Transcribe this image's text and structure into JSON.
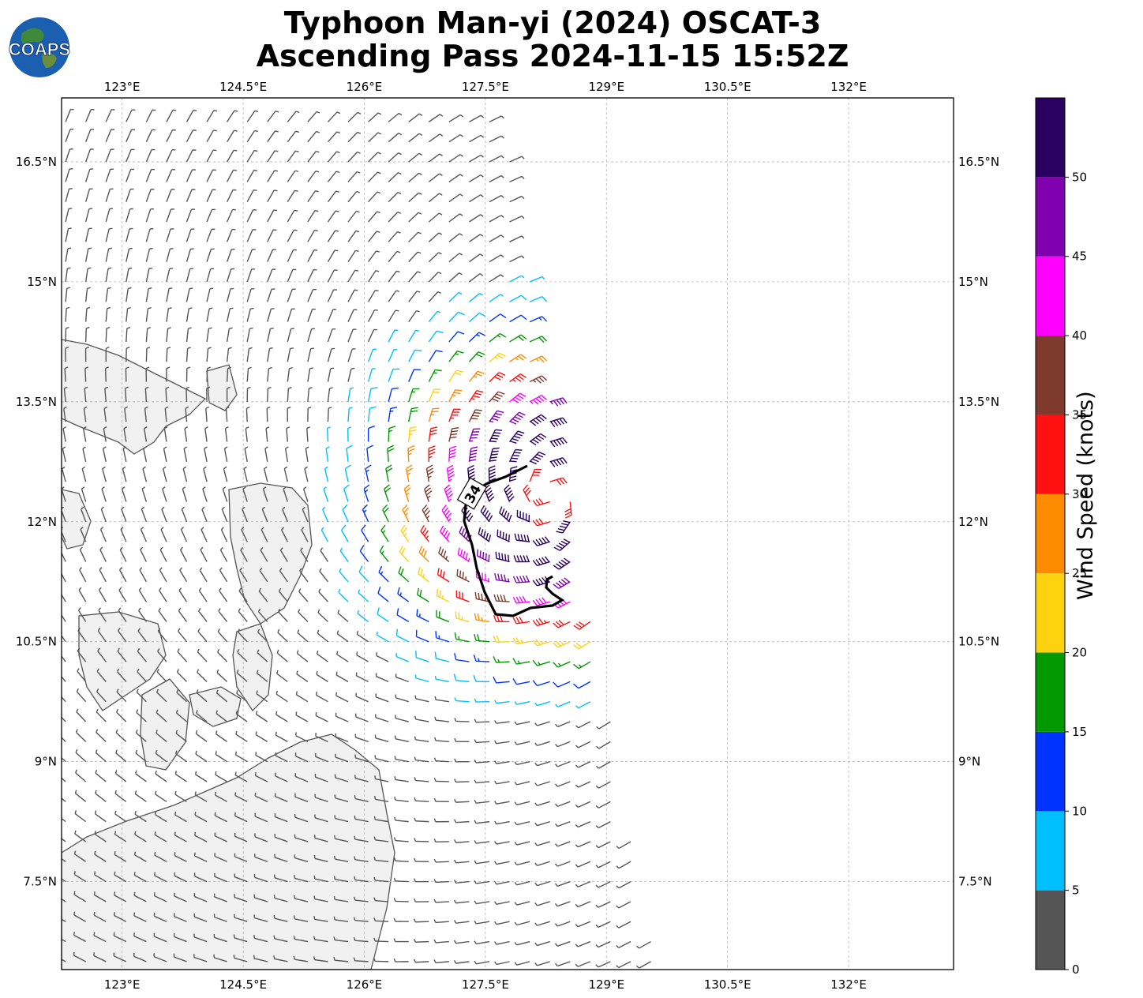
{
  "title": {
    "line1": "Typhoon Man-yi (2024) OSCAT-3",
    "line2": "Ascending Pass 2024-11-15 15:52Z"
  },
  "logo": {
    "text": "COAPS",
    "icon": "globe-logo-icon"
  },
  "map": {
    "lon_ticks": [
      "123°E",
      "124.5°E",
      "126°E",
      "127.5°E",
      "129°E",
      "130.5°E",
      "132°E"
    ],
    "lat_ticks": [
      "16.5°N",
      "15°N",
      "13.5°N",
      "12°N",
      "10.5°N",
      "9°N",
      "7.5°N"
    ],
    "lon_values": [
      123,
      124.5,
      126,
      127.5,
      129,
      130.5,
      132
    ],
    "lat_values": [
      16.5,
      15,
      13.5,
      12,
      10.5,
      9,
      7.5
    ],
    "lon_range": [
      122.25,
      133.3
    ],
    "lat_range": [
      6.4,
      17.3
    ],
    "storm_center": {
      "lon": 128.3,
      "lat": 12.3
    },
    "contour_label": "34"
  },
  "colorbar": {
    "label": "Wind Speed (knots)",
    "ticks": [
      "0",
      "5",
      "10",
      "15",
      "20",
      "25",
      "30",
      "35",
      "40",
      "45",
      "50"
    ],
    "bins": [
      {
        "min": 0,
        "max": 5,
        "color": "#555555"
      },
      {
        "min": 5,
        "max": 10,
        "color": "#00bfff"
      },
      {
        "min": 10,
        "max": 15,
        "color": "#0033ff"
      },
      {
        "min": 15,
        "max": 20,
        "color": "#009900"
      },
      {
        "min": 20,
        "max": 25,
        "color": "#ffd20f"
      },
      {
        "min": 25,
        "max": 30,
        "color": "#ff8c00"
      },
      {
        "min": 30,
        "max": 35,
        "color": "#ff1111"
      },
      {
        "min": 35,
        "max": 40,
        "color": "#7e3a2c"
      },
      {
        "min": 40,
        "max": 45,
        "color": "#ff00ff"
      },
      {
        "min": 45,
        "max": 50,
        "color": "#8000b0"
      },
      {
        "min": 50,
        "max": 55,
        "color": "#2a0060"
      }
    ]
  }
}
